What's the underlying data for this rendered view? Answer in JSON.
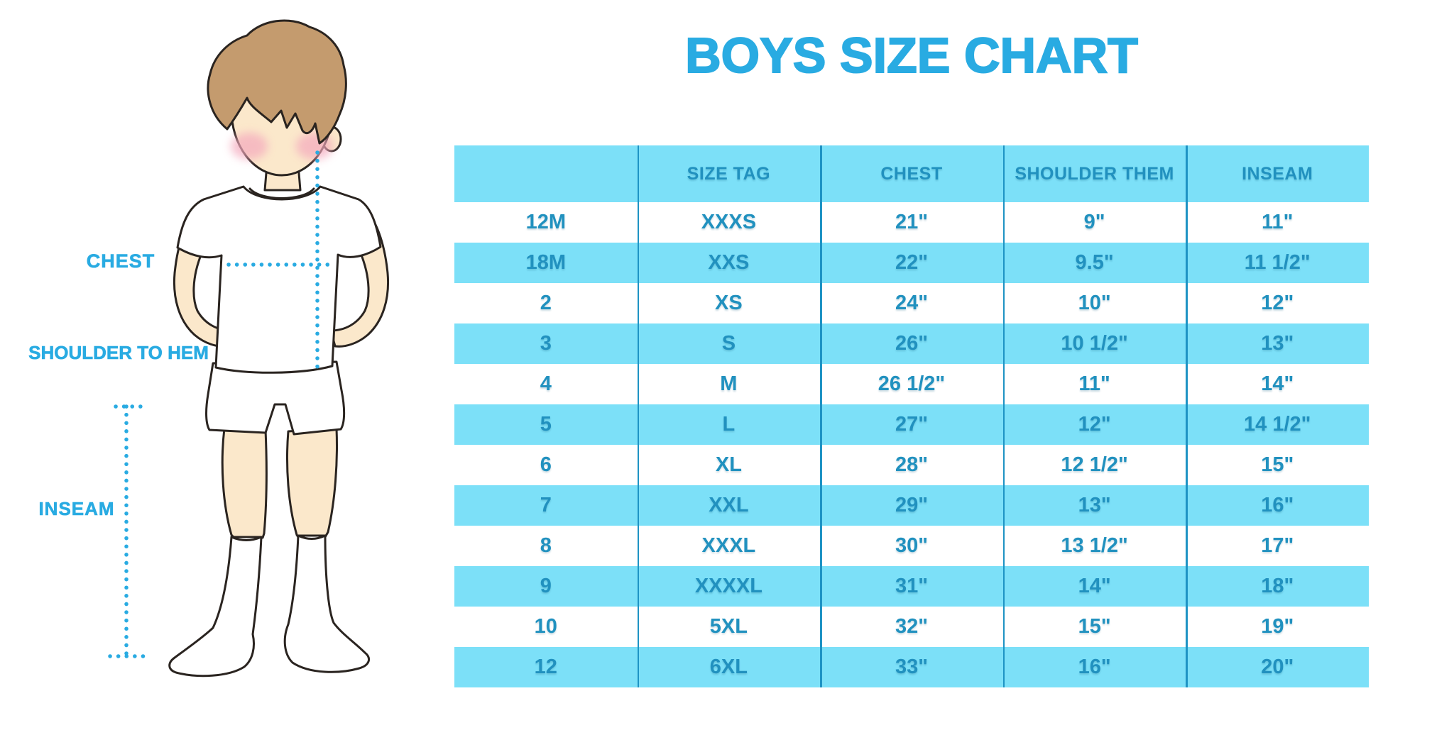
{
  "title": "BOYS SIZE CHART",
  "colors": {
    "accent": "#29ABE2",
    "row_fill": "#7CE0F8",
    "grid_line": "#1E93C4",
    "table_text": "#2191BF",
    "outline": "#2A2420",
    "skin": "#FBE8CB",
    "hair": "#C49B6E",
    "cheek": "#F4A9BD",
    "garment": "#FFFFFF"
  },
  "diagram": {
    "labels": [
      {
        "text": "CHEST"
      },
      {
        "text": "SHOULDER TO HEM"
      },
      {
        "text": "INSEAM"
      }
    ]
  },
  "chart_data": {
    "type": "table",
    "title": "BOYS SIZE CHART",
    "columns": [
      "",
      "SIZE TAG",
      "CHEST",
      "SHOULDER THEM",
      "INSEAM"
    ],
    "rows": [
      [
        "12M",
        "XXXS",
        "21\"",
        "9\"",
        "11\""
      ],
      [
        "18M",
        "XXS",
        "22\"",
        "9.5\"",
        "11 1/2\""
      ],
      [
        "2",
        "XS",
        "24\"",
        "10\"",
        "12\""
      ],
      [
        "3",
        "S",
        "26\"",
        "10 1/2\"",
        "13\""
      ],
      [
        "4",
        "M",
        "26 1/2\"",
        "11\"",
        "14\""
      ],
      [
        "5",
        "L",
        "27\"",
        "12\"",
        "14 1/2\""
      ],
      [
        "6",
        "XL",
        "28\"",
        "12 1/2\"",
        "15\""
      ],
      [
        "7",
        "XXL",
        "29\"",
        "13\"",
        "16\""
      ],
      [
        "8",
        "XXXL",
        "30\"",
        "13 1/2\"",
        "17\""
      ],
      [
        "9",
        "XXXXL",
        "31\"",
        "14\"",
        "18\""
      ],
      [
        "10",
        "5XL",
        "32\"",
        "15\"",
        "19\""
      ],
      [
        "12",
        "6XL",
        "33\"",
        "16\"",
        "20\""
      ]
    ],
    "layout": {
      "row_striping": [
        "white",
        "cyan"
      ],
      "grid": "vertical-only",
      "legend": "none"
    }
  }
}
